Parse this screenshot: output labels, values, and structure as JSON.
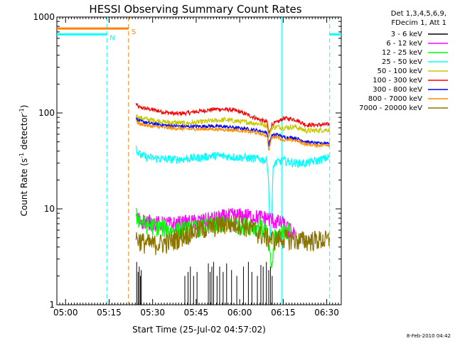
{
  "chart_data": {
    "type": "line",
    "title": "HESSI Observing Summary Count Rates",
    "xlabel": "Start Time (25-Jul-02 04:57:02)",
    "ylabel_parts": [
      "Count Rate (s",
      "-1",
      " detector",
      "-1",
      ")"
    ],
    "yscale": "log",
    "ylim": [
      1,
      1000
    ],
    "xlim_minutes": [
      0,
      98
    ],
    "x_ticks": [
      {
        "label": "05:00",
        "minute": 3
      },
      {
        "label": "05:15",
        "minute": 18
      },
      {
        "label": "05:30",
        "minute": 33
      },
      {
        "label": "05:45",
        "minute": 48
      },
      {
        "label": "06:00",
        "minute": 63
      },
      {
        "label": "06:15",
        "minute": 78
      },
      {
        "label": "06:30",
        "minute": 93
      }
    ],
    "y_ticks": [
      {
        "label": "1",
        "value": 1
      },
      {
        "label": "10",
        "value": 10
      },
      {
        "label": "100",
        "value": 100
      },
      {
        "label": "1000",
        "value": 1000
      }
    ],
    "legend": {
      "header": [
        "Det 1,3,4,5,6,9,",
        "FDecim 1, Att 1"
      ],
      "entries": [
        {
          "name": "3 - 6 keV",
          "color": "#000000"
        },
        {
          "name": "6 - 12 keV",
          "color": "#ff00ff"
        },
        {
          "name": "12 - 25 keV",
          "color": "#00ff00"
        },
        {
          "name": "25 - 50 keV",
          "color": "#00ffff"
        },
        {
          "name": "50 - 100 keV",
          "color": "#c8c800"
        },
        {
          "name": "100 - 300 keV",
          "color": "#ff0000"
        },
        {
          "name": "300 - 800 keV",
          "color": "#0000ff"
        },
        {
          "name": "800 - 7000 keV",
          "color": "#ff8c00"
        },
        {
          "name": "7000 - 20000 keV",
          "color": "#8b7500"
        }
      ]
    },
    "flags": [
      {
        "label": "N",
        "color": "#00ffff",
        "segments": [
          [
            0,
            17.2
          ],
          [
            94,
            98
          ]
        ],
        "value": 660
      },
      {
        "label": "S",
        "color": "#ff8000",
        "segments": [
          [
            0,
            24.7
          ]
        ],
        "value": 760
      }
    ],
    "vertical_lines": [
      {
        "minute": 17.2,
        "color": "#00ffff",
        "style": "dashed"
      },
      {
        "minute": 24.7,
        "color": "#ff8000",
        "style": "dashed"
      },
      {
        "minute": 77.5,
        "color": "#00ffff",
        "style": "solid"
      },
      {
        "minute": 94,
        "color": "#00ffff",
        "style": "dashed"
      }
    ],
    "data_start_minute": 27.3,
    "data_end_minute": 94,
    "series": [
      {
        "name": "100 - 300 keV",
        "color": "#ff0000",
        "x": [
          27.3,
          28,
          30,
          33,
          37,
          41,
          45,
          50,
          55,
          60,
          63,
          66,
          70,
          72.5,
          73,
          74,
          75,
          76,
          78,
          82,
          86,
          90,
          94
        ],
        "y": [
          125,
          115,
          112,
          108,
          102,
          98,
          100,
          105,
          110,
          108,
          103,
          95,
          85,
          80,
          60,
          75,
          78,
          80,
          88,
          86,
          75,
          75,
          76
        ]
      },
      {
        "name": "50 - 100 keV",
        "color": "#c8c800",
        "x": [
          27.3,
          28,
          32,
          38,
          45,
          52,
          58,
          62,
          66,
          70,
          72.5,
          73,
          74,
          76,
          78,
          82,
          86,
          90,
          94
        ],
        "y": [
          95,
          90,
          85,
          80,
          78,
          82,
          85,
          82,
          80,
          77,
          74,
          55,
          70,
          72,
          70,
          72,
          65,
          66,
          67
        ]
      },
      {
        "name": "300 - 800 keV",
        "color": "#0000ff",
        "x": [
          27.3,
          28,
          32,
          38,
          45,
          52,
          58,
          62,
          66,
          70,
          72.5,
          73,
          74,
          76,
          78,
          82,
          86,
          90,
          94
        ],
        "y": [
          88,
          83,
          78,
          74,
          72,
          73,
          72,
          70,
          68,
          65,
          62,
          46,
          58,
          60,
          56,
          55,
          50,
          48,
          49
        ]
      },
      {
        "name": "800 - 7000 keV",
        "color": "#ff8c00",
        "x": [
          27.3,
          28,
          32,
          38,
          45,
          52,
          58,
          62,
          66,
          70,
          72.5,
          73,
          74,
          76,
          78,
          82,
          86,
          90,
          94
        ],
        "y": [
          83,
          78,
          73,
          70,
          68,
          68,
          67,
          66,
          64,
          61,
          58,
          40,
          55,
          57,
          52,
          52,
          47,
          46,
          47
        ]
      },
      {
        "name": "25 - 50 keV",
        "color": "#00ffff",
        "x": [
          27.3,
          28,
          30,
          33,
          37,
          42,
          48,
          54,
          60,
          66,
          70,
          72.5,
          73,
          73.5,
          74,
          74.5,
          75,
          78,
          82,
          86,
          90,
          94
        ],
        "y": [
          45,
          38,
          35,
          34,
          33,
          33,
          34,
          36,
          35,
          34,
          33,
          32,
          18,
          5,
          8,
          25,
          30,
          32,
          30,
          30,
          32,
          35
        ]
      },
      {
        "name": "6 - 12 keV",
        "color": "#ff00ff",
        "x": [
          27.3,
          30,
          35,
          40,
          45,
          50,
          55,
          60,
          65,
          70,
          73,
          75,
          78,
          80,
          82
        ],
        "y": [
          8,
          7.5,
          7,
          7,
          7.2,
          7.5,
          8,
          8.5,
          8.5,
          8.2,
          8,
          7.5,
          7,
          6,
          5.5
        ]
      },
      {
        "name": "12 - 25 keV",
        "color": "#00ff00",
        "x": [
          27.3,
          30,
          35,
          40,
          45,
          50,
          55,
          60,
          65,
          70,
          72,
          73,
          73.5,
          74,
          74.5,
          75,
          78,
          81
        ],
        "y": [
          8.5,
          7,
          6.5,
          6,
          6.2,
          6.5,
          7,
          7,
          6.8,
          6.5,
          6,
          4,
          3,
          2.5,
          3.2,
          5,
          6,
          6
        ]
      },
      {
        "name": "7000 - 20000 keV",
        "color": "#8b7500",
        "x": [
          27.3,
          30,
          33,
          38,
          43,
          48,
          53,
          58,
          63,
          66,
          70,
          73,
          75,
          78,
          82,
          86,
          90,
          94
        ],
        "y": [
          5,
          4.5,
          4.3,
          4.5,
          5.2,
          6,
          6.5,
          7,
          7,
          6.5,
          5.5,
          5,
          4.8,
          5,
          4.8,
          4.7,
          4.8,
          4.7
        ]
      }
    ],
    "low_counts_3_6": {
      "name": "3 - 6 keV",
      "color": "#000000",
      "x": [
        27.5,
        28.0,
        28.4,
        28.8,
        29.1,
        44.1,
        45.2,
        46.0,
        47.1,
        48.3,
        52.2,
        52.8,
        53.4,
        54.0,
        55.2,
        56.1,
        57.3,
        58.5,
        60.2,
        62.0,
        64.3,
        66.0,
        67.2,
        69.1,
        70.3,
        71.1,
        72.2,
        73.0,
        73.6,
        74.2
      ],
      "y": [
        2.8,
        2.2,
        2.5,
        2.0,
        2.3,
        2.0,
        2.2,
        2.5,
        2.0,
        2.2,
        2.7,
        2.2,
        2.5,
        2.8,
        2.0,
        2.5,
        2.2,
        2.7,
        2.3,
        2.0,
        2.5,
        2.8,
        2.2,
        2.0,
        2.6,
        2.5,
        2.8,
        2.3,
        2.5,
        2.0
      ]
    }
  },
  "footer": {
    "date_stamp": "8-Feb-2010 04:42"
  }
}
